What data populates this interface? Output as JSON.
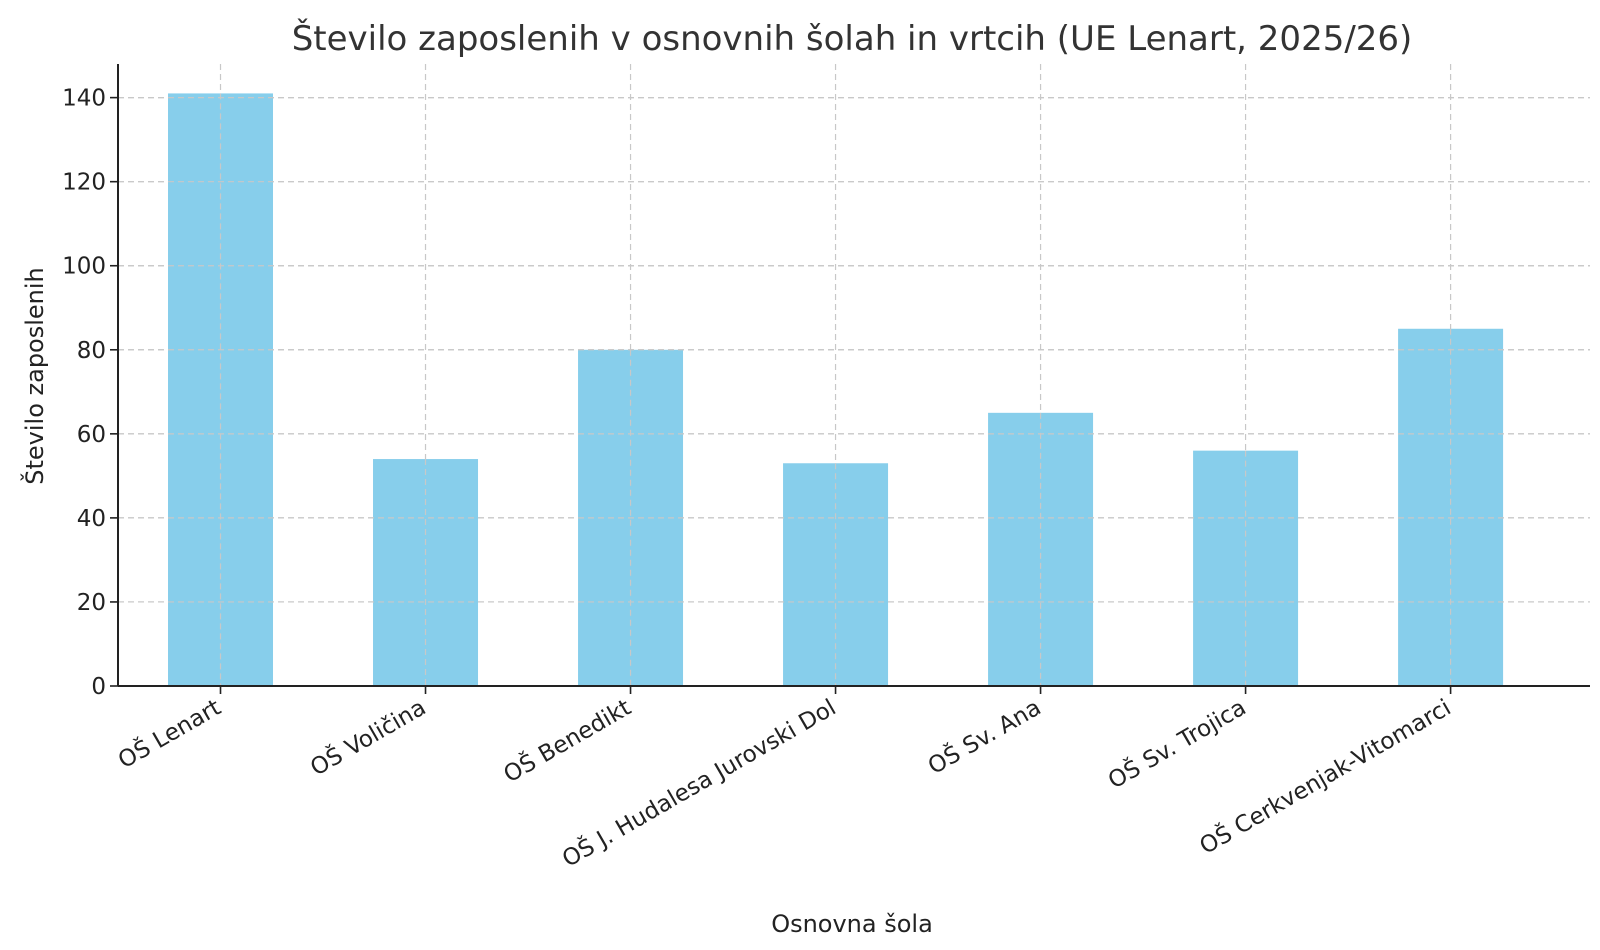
{
  "chart_data": {
    "type": "bar",
    "title": "Število zaposlenih v osnovnih šolah in vrtcih (UE Lenart, 2025/26)",
    "xlabel": "Osnovna šola",
    "ylabel": "Število zaposlenih",
    "categories": [
      "OŠ Lenart",
      "OŠ Voličina",
      "OŠ Benedikt",
      "OŠ J. Hudalesa Jurovski Dol",
      "OŠ Sv. Ana",
      "OŠ Sv. Trojica",
      "OŠ Cerkvenjak-Vitomarci"
    ],
    "values": [
      141,
      54,
      80,
      53,
      65,
      56,
      85
    ],
    "ylim": [
      0,
      148
    ],
    "yticks": [
      0,
      20,
      40,
      60,
      80,
      100,
      120,
      140
    ],
    "grid": true,
    "bar_color": "#87ceeb"
  }
}
